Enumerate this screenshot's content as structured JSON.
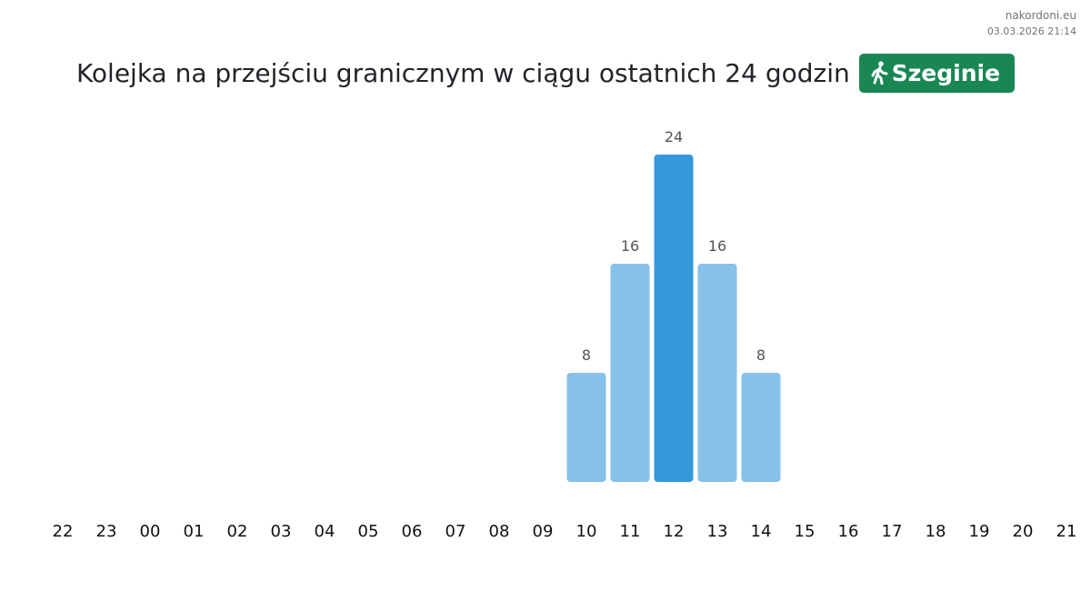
{
  "brand": {
    "site": "nakordoni.eu",
    "datetime": "03.03.2026 21:14"
  },
  "header": {
    "title": "Kolejka na przejściu granicznym w ciągu ostatnich 24 godzin",
    "badge_label": "Szeginie",
    "badge_icon": "pedestrian-icon",
    "badge_color": "#198754"
  },
  "chart_data": {
    "type": "bar",
    "categories": [
      "22",
      "23",
      "00",
      "01",
      "02",
      "03",
      "04",
      "05",
      "06",
      "07",
      "08",
      "09",
      "10",
      "11",
      "12",
      "13",
      "14",
      "15",
      "16",
      "17",
      "18",
      "19",
      "20",
      "21"
    ],
    "values": [
      0,
      0,
      0,
      0,
      0,
      0,
      0,
      0,
      0,
      0,
      0,
      0,
      8,
      16,
      24,
      16,
      8,
      0,
      0,
      0,
      0,
      0,
      0,
      0
    ],
    "highlight_category": "12",
    "colors": {
      "bar": "#85c1e9",
      "highlight": "#3498db"
    },
    "title": "",
    "xlabel": "",
    "ylabel": "",
    "ylim": [
      0,
      24
    ],
    "grid": false,
    "legend": "none"
  }
}
